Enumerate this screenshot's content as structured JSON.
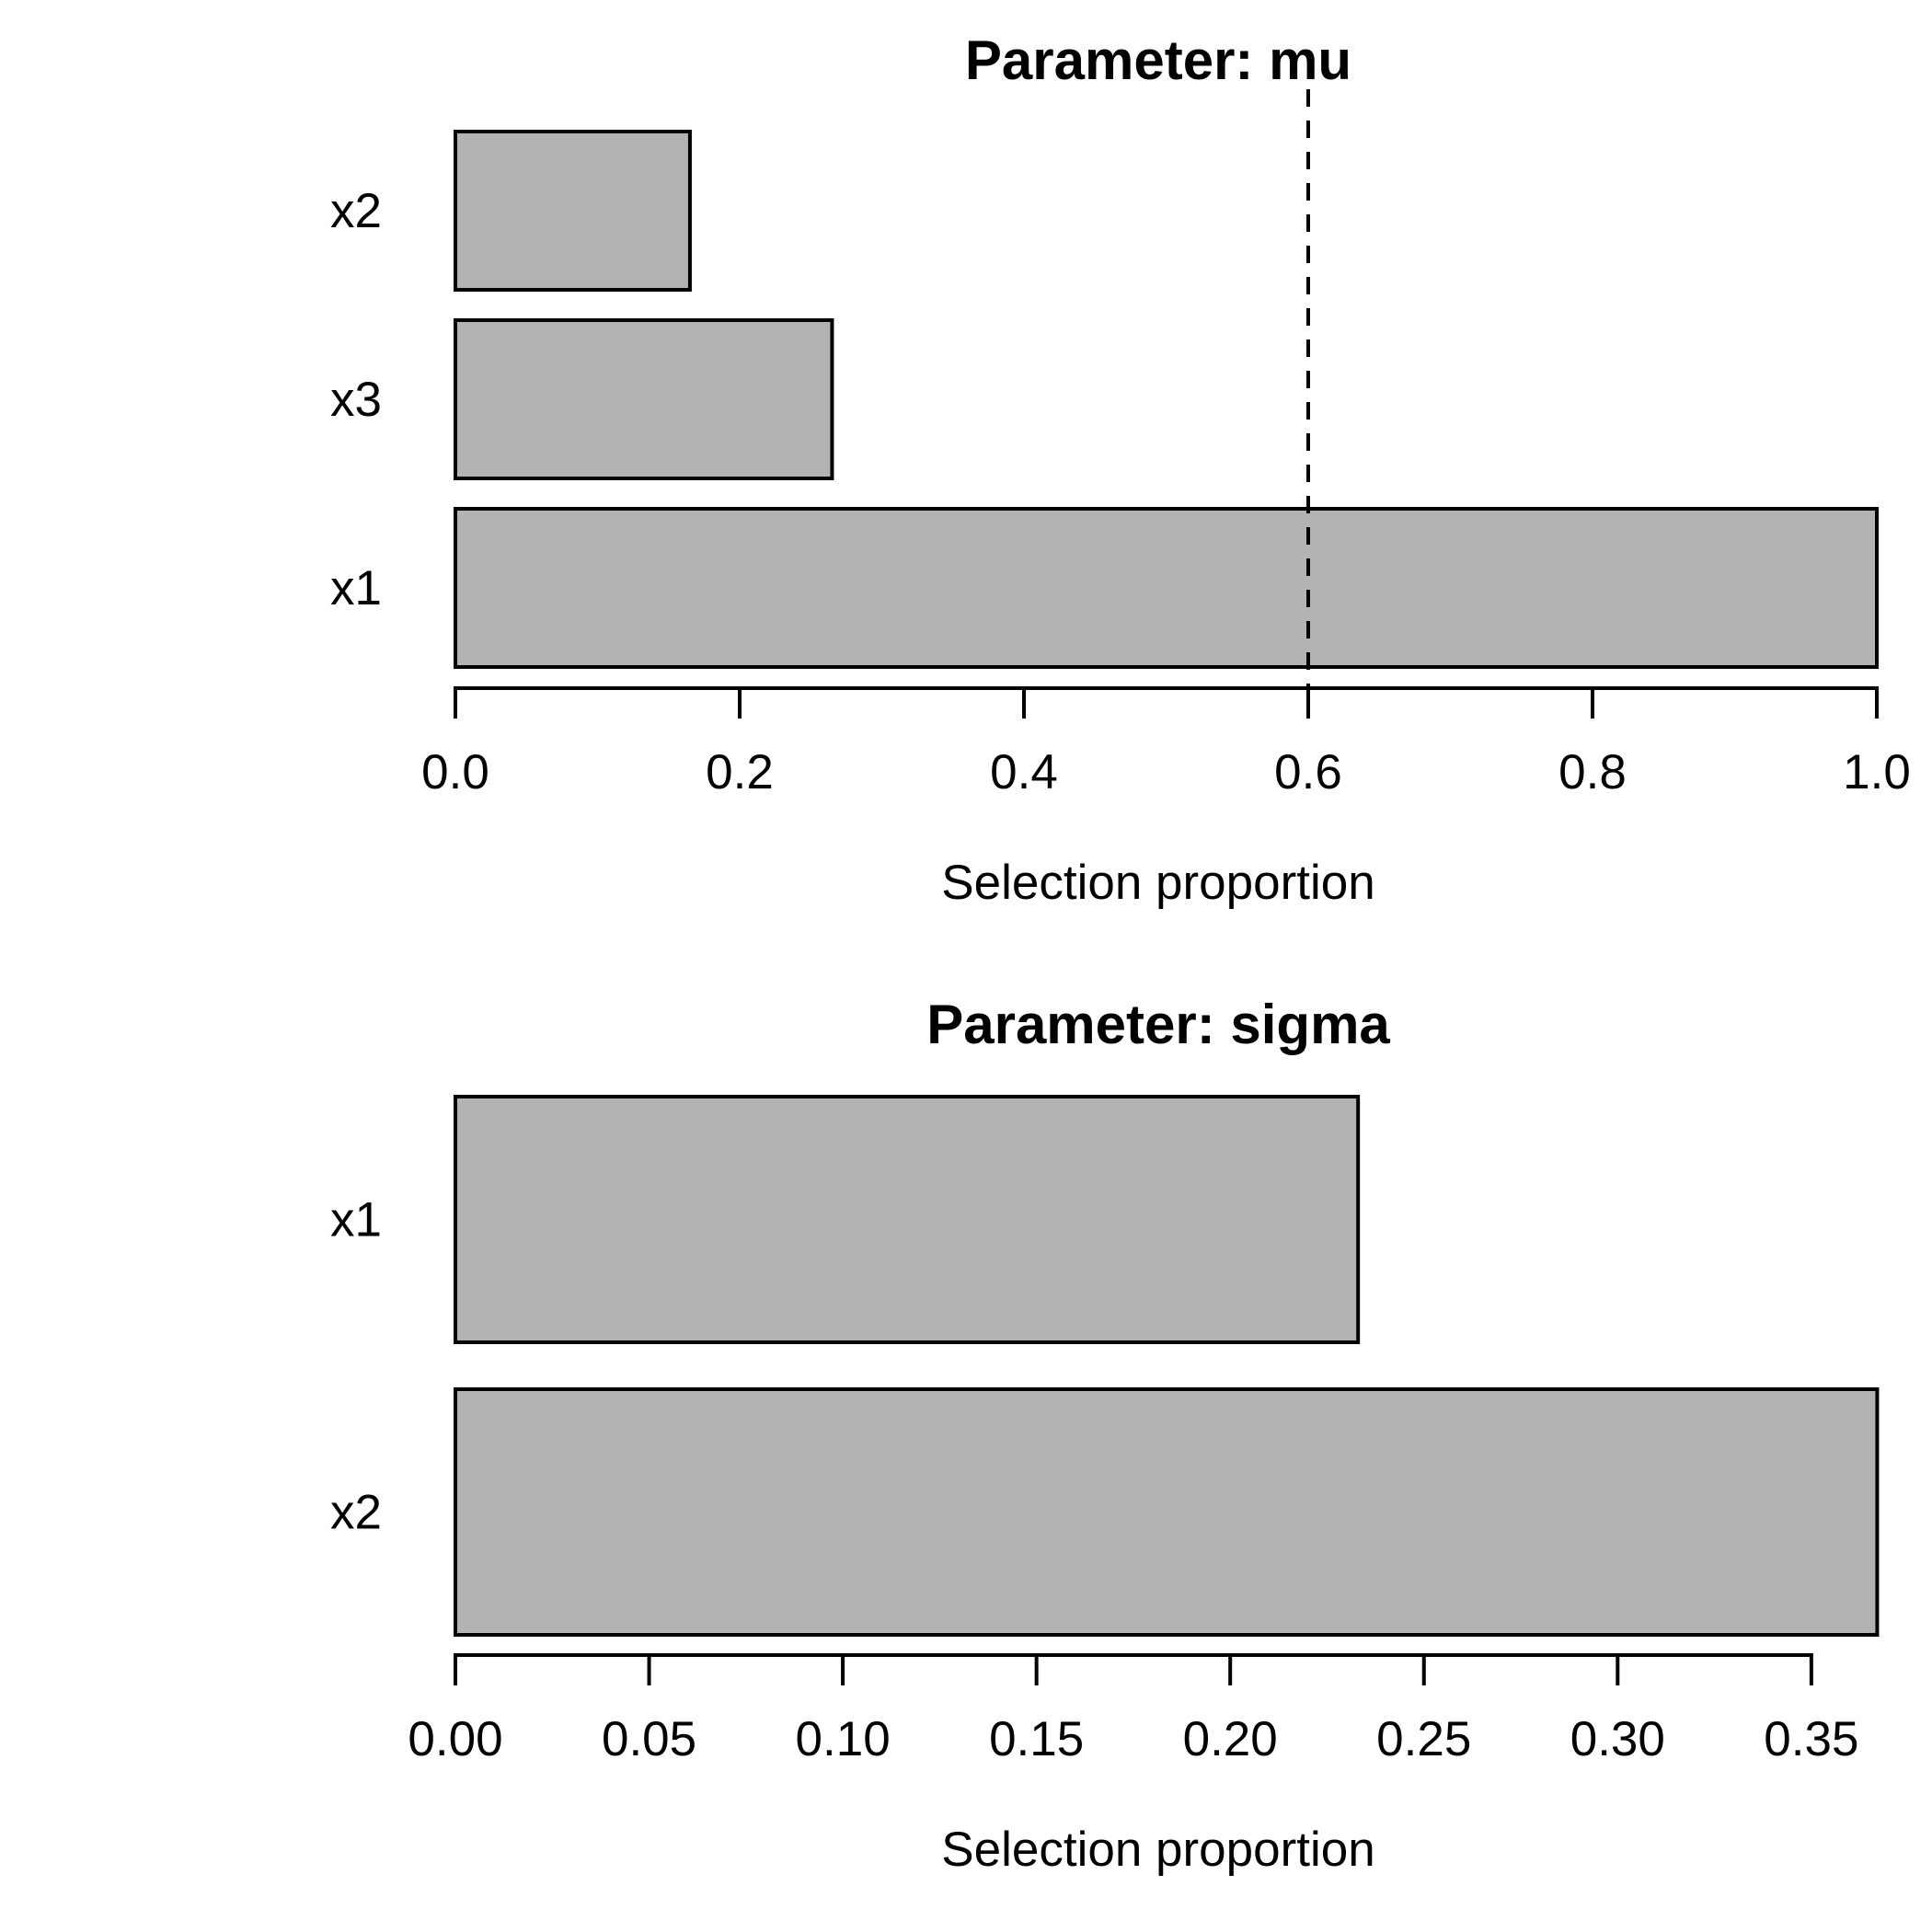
{
  "style": {
    "background": "#ffffff",
    "bar_fill": "#b3b3b3",
    "bar_border": "#000000",
    "line_color": "#000000",
    "text_color": "#000000"
  },
  "chart_data": [
    {
      "type": "bar",
      "orientation": "horizontal",
      "title": "Parameter: mu",
      "xlabel": "Selection proportion",
      "categories": [
        "x2",
        "x3",
        "x1"
      ],
      "values": [
        0.165,
        0.265,
        1.0
      ],
      "xlim": [
        0.0,
        1.0
      ],
      "tick_values": [
        0.0,
        0.2,
        0.4,
        0.6,
        0.8,
        1.0
      ],
      "tick_labels": [
        "0.0",
        "0.2",
        "0.4",
        "0.6",
        "0.8",
        "1.0"
      ],
      "threshold": 0.6,
      "threshold_style": "dashed-vertical-line",
      "grid": false,
      "legend": null
    },
    {
      "type": "bar",
      "orientation": "horizontal",
      "title": "Parameter: sigma",
      "xlabel": "Selection proportion",
      "categories": [
        "x1",
        "x2"
      ],
      "values": [
        0.233,
        0.367
      ],
      "xlim": [
        0.0,
        0.37
      ],
      "tick_values": [
        0.0,
        0.05,
        0.1,
        0.15,
        0.2,
        0.25,
        0.3,
        0.35
      ],
      "tick_labels": [
        "0.00",
        "0.05",
        "0.10",
        "0.15",
        "0.20",
        "0.25",
        "0.30",
        "0.35"
      ],
      "threshold": null,
      "threshold_style": null,
      "grid": false,
      "legend": null
    }
  ]
}
